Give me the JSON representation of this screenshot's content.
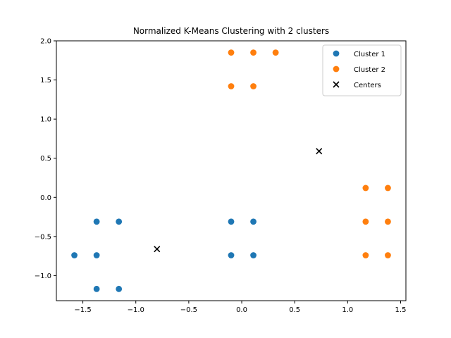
{
  "chart_data": {
    "type": "scatter",
    "title": "Normalized K-Means Clustering with 2 clusters",
    "xlabel": "",
    "ylabel": "",
    "xlim": [
      -1.75,
      1.55
    ],
    "ylim": [
      -1.32,
      2.0
    ],
    "xticks": [
      -1.5,
      -1.0,
      -0.5,
      0.0,
      0.5,
      1.0,
      1.5
    ],
    "xtick_labels": [
      "−1.5",
      "−1.0",
      "−0.5",
      "0.0",
      "0.5",
      "1.0",
      "1.5"
    ],
    "yticks": [
      -1.0,
      -0.5,
      0.0,
      0.5,
      1.0,
      1.5,
      2.0
    ],
    "ytick_labels": [
      "−1.0",
      "−0.5",
      "0.0",
      "0.5",
      "1.0",
      "1.5",
      "2.0"
    ],
    "grid": false,
    "legend_position": "top-right",
    "series": [
      {
        "name": "Cluster 1",
        "color": "#1f77b4",
        "marker": "circle",
        "points": [
          [
            -1.58,
            -0.74
          ],
          [
            -1.37,
            -0.31
          ],
          [
            -1.37,
            -0.74
          ],
          [
            -1.37,
            -1.17
          ],
          [
            -1.16,
            -0.31
          ],
          [
            -1.16,
            -1.17
          ],
          [
            -0.1,
            -0.31
          ],
          [
            -0.1,
            -0.74
          ],
          [
            0.11,
            -0.31
          ],
          [
            0.11,
            -0.74
          ]
        ]
      },
      {
        "name": "Cluster 2",
        "color": "#ff7f0e",
        "marker": "circle",
        "points": [
          [
            -0.1,
            1.85
          ],
          [
            0.11,
            1.85
          ],
          [
            0.32,
            1.85
          ],
          [
            -0.1,
            1.42
          ],
          [
            0.11,
            1.42
          ],
          [
            1.17,
            0.12
          ],
          [
            1.38,
            0.12
          ],
          [
            1.17,
            -0.31
          ],
          [
            1.38,
            -0.31
          ],
          [
            1.17,
            -0.74
          ],
          [
            1.38,
            -0.74
          ]
        ]
      },
      {
        "name": "Centers",
        "color": "#000000",
        "marker": "x",
        "points": [
          [
            -0.8,
            -0.66
          ],
          [
            0.73,
            0.59
          ]
        ]
      }
    ]
  }
}
